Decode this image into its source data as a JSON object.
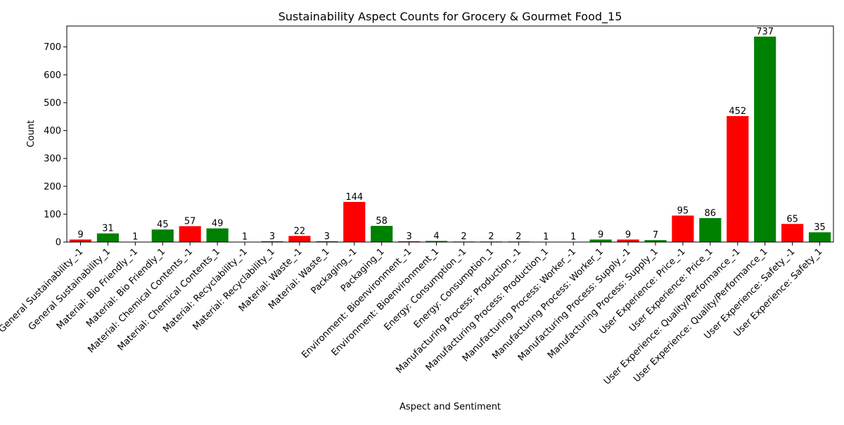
{
  "chart_data": {
    "type": "bar",
    "title": "Sustainability Aspect Counts for Grocery & Gourmet Food_15",
    "xlabel": "Aspect and Sentiment",
    "ylabel": "Count",
    "ylim": [
      0,
      775
    ],
    "yticks": [
      0,
      100,
      200,
      300,
      400,
      500,
      600,
      700
    ],
    "grid": false,
    "colors": {
      "negative": "#ff0000",
      "positive": "#008000"
    },
    "categories": [
      "General Sustainability_-1",
      "General Sustainability_1",
      "Material: Bio Friendly_-1",
      "Material: Bio Friendly_1",
      "Material: Chemical Contents_-1",
      "Material: Chemical Contents_1",
      "Material: Recyclability_-1",
      "Material: Recyclability_1",
      "Material: Waste_-1",
      "Material: Waste_1",
      "Packaging_-1",
      "Packaging_1",
      "Environment: Bioenvironment_-1",
      "Environment: Bioenvironment_1",
      "Energy: Consumption_-1",
      "Energy: Consumption_1",
      "Manufacturing Process: Production_-1",
      "Manufacturing Process: Production_1",
      "Manufacturing Process: Worker_-1",
      "Manufacturing Process: Worker_1",
      "Manufacturing Process: Supply_-1",
      "Manufacturing Process: Supply_1",
      "User Experience: Price_-1",
      "User Experience: Price_1",
      "User Experience: Quality/Performance_-1",
      "User Experience: Quality/Performance_1",
      "User Experience: Safety_-1",
      "User Experience: Safety_1"
    ],
    "values": [
      9,
      31,
      1,
      45,
      57,
      49,
      1,
      3,
      22,
      3,
      144,
      58,
      3,
      4,
      2,
      2,
      2,
      1,
      1,
      9,
      9,
      7,
      95,
      86,
      452,
      737,
      65,
      35
    ],
    "bar_colors": [
      "negative",
      "positive",
      "negative",
      "positive",
      "negative",
      "positive",
      "negative",
      "positive",
      "negative",
      "positive",
      "negative",
      "positive",
      "negative",
      "positive",
      "negative",
      "positive",
      "negative",
      "positive",
      "negative",
      "positive",
      "negative",
      "positive",
      "negative",
      "positive",
      "negative",
      "positive",
      "negative",
      "positive"
    ]
  }
}
